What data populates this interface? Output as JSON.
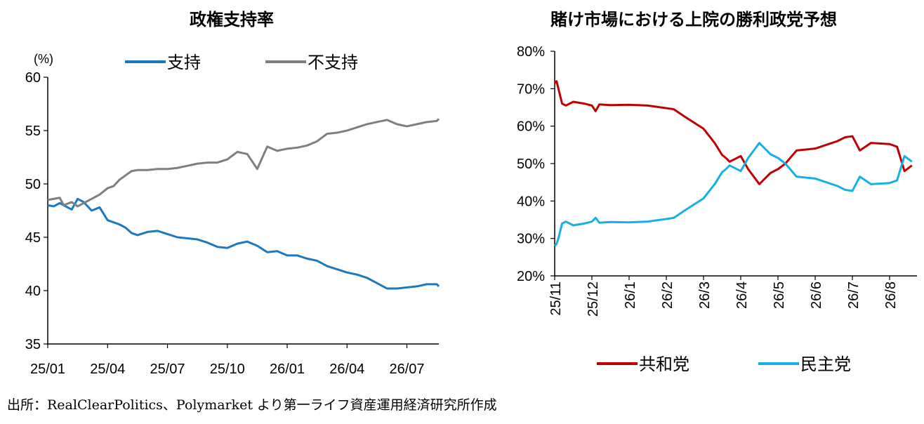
{
  "chart_data": [
    {
      "type": "line",
      "title": "政権支持率",
      "unit_label": "(%)",
      "ylim": [
        35,
        60
      ],
      "yticks": [
        35,
        40,
        45,
        50,
        55,
        60
      ],
      "x_tick_labels": [
        "25/01",
        "25/04",
        "25/07",
        "25/10",
        "26/01",
        "26/04",
        "26/07"
      ],
      "legend_placement": "top",
      "grid": false,
      "series": [
        {
          "name": "支持",
          "color": "#1a7abf",
          "x": [
            0,
            0.3,
            0.6,
            0.8,
            1.2,
            1.5,
            1.8,
            2.2,
            2.6,
            3.0,
            3.3,
            3.6,
            3.9,
            4.2,
            4.5,
            5.0,
            5.5,
            6.0,
            6.5,
            7.0,
            7.5,
            8.0,
            8.5,
            9.0,
            9.5,
            10.0,
            10.5,
            11.0,
            11.5,
            12.0,
            12.5,
            13.0,
            13.5,
            14.0,
            14.5,
            15.0,
            15.5,
            16.0,
            16.5,
            17.0,
            17.5,
            18.0,
            18.5,
            19.0,
            19.5,
            19.6
          ],
          "values": [
            48.0,
            47.9,
            48.2,
            48.0,
            47.6,
            48.6,
            48.3,
            47.5,
            47.8,
            46.6,
            46.4,
            46.2,
            45.9,
            45.4,
            45.2,
            45.5,
            45.6,
            45.3,
            45.0,
            44.9,
            44.8,
            44.5,
            44.1,
            44.0,
            44.4,
            44.6,
            44.2,
            43.6,
            43.7,
            43.3,
            43.3,
            43.0,
            42.8,
            42.3,
            42.0,
            41.7,
            41.5,
            41.2,
            40.7,
            40.2,
            40.2,
            40.3,
            40.4,
            40.6,
            40.6,
            40.4
          ]
        },
        {
          "name": "不支持",
          "color": "#7f7f7f",
          "x": [
            0,
            0.3,
            0.6,
            0.8,
            1.2,
            1.5,
            1.8,
            2.2,
            2.6,
            3.0,
            3.3,
            3.6,
            3.9,
            4.2,
            4.5,
            5.0,
            5.5,
            6.0,
            6.5,
            7.0,
            7.5,
            8.0,
            8.5,
            9.0,
            9.5,
            10.0,
            10.5,
            11.0,
            11.5,
            12.0,
            12.5,
            13.0,
            13.5,
            14.0,
            14.5,
            15.0,
            15.5,
            16.0,
            16.5,
            17.0,
            17.5,
            18.0,
            18.5,
            19.0,
            19.5,
            19.6
          ],
          "values": [
            48.5,
            48.6,
            48.7,
            48.0,
            48.3,
            47.9,
            48.2,
            48.6,
            49.0,
            49.6,
            49.8,
            50.4,
            50.8,
            51.2,
            51.3,
            51.3,
            51.4,
            51.4,
            51.5,
            51.7,
            51.9,
            52.0,
            52.0,
            52.3,
            53.0,
            52.8,
            51.4,
            53.5,
            53.1,
            53.3,
            53.4,
            53.6,
            54.0,
            54.7,
            54.8,
            55.0,
            55.3,
            55.6,
            55.8,
            56.0,
            55.6,
            55.4,
            55.6,
            55.8,
            55.9,
            56.1
          ]
        }
      ]
    },
    {
      "type": "line",
      "title": "賭け市場における上院の勝利政党予想",
      "ylim": [
        20,
        80
      ],
      "yticks": [
        "20%",
        "30%",
        "40%",
        "50%",
        "60%",
        "70%",
        "80%"
      ],
      "x_tick_labels": [
        "25/11",
        "25/12",
        "26/1",
        "26/2",
        "26/3",
        "26/4",
        "26/5",
        "26/6",
        "26/7",
        "26/8"
      ],
      "legend_placement": "bottom",
      "grid": false,
      "series": [
        {
          "name": "共和党",
          "color": "#c00000",
          "x": [
            0,
            0.05,
            0.1,
            0.2,
            0.3,
            0.5,
            0.8,
            1.0,
            1.1,
            1.2,
            1.5,
            2.0,
            2.5,
            3.0,
            3.2,
            3.5,
            4.0,
            4.3,
            4.5,
            4.6,
            4.7,
            4.8,
            5.0,
            5.2,
            5.5,
            5.6,
            5.8,
            6.0,
            6.2,
            6.5,
            7.0,
            7.3,
            7.6,
            7.8,
            8.0,
            8.2,
            8.5,
            9.0,
            9.2,
            9.4,
            9.6
          ],
          "values": [
            71.5,
            72.0,
            70.0,
            66.0,
            65.5,
            66.5,
            66.0,
            65.5,
            64.0,
            65.8,
            65.6,
            65.7,
            65.5,
            64.8,
            64.5,
            62.5,
            59.3,
            55.5,
            52.3,
            51.5,
            50.5,
            51.0,
            52.0,
            48.5,
            44.5,
            45.5,
            47.5,
            48.5,
            50.0,
            53.5,
            54.0,
            55.0,
            56.0,
            57.0,
            57.3,
            53.5,
            55.5,
            55.2,
            54.5,
            48.0,
            49.5
          ]
        },
        {
          "name": "民主党",
          "color": "#16b0e8",
          "x": [
            0,
            0.05,
            0.1,
            0.2,
            0.3,
            0.5,
            0.8,
            1.0,
            1.1,
            1.2,
            1.5,
            2.0,
            2.5,
            3.0,
            3.2,
            3.5,
            4.0,
            4.3,
            4.5,
            4.6,
            4.7,
            4.8,
            5.0,
            5.2,
            5.5,
            5.6,
            5.8,
            6.0,
            6.2,
            6.5,
            7.0,
            7.3,
            7.6,
            7.8,
            8.0,
            8.2,
            8.5,
            9.0,
            9.2,
            9.4,
            9.6
          ],
          "values": [
            28.0,
            28.5,
            30.0,
            34.0,
            34.5,
            33.5,
            34.0,
            34.5,
            35.5,
            34.2,
            34.4,
            34.3,
            34.5,
            35.2,
            35.5,
            37.5,
            40.7,
            44.5,
            47.7,
            48.5,
            49.5,
            49.0,
            48.0,
            51.5,
            55.5,
            54.5,
            52.5,
            51.5,
            50.0,
            46.5,
            46.0,
            45.0,
            44.0,
            43.0,
            42.7,
            46.5,
            44.5,
            44.8,
            45.5,
            52.0,
            50.5
          ]
        }
      ]
    }
  ],
  "footer": {
    "source": "出所：RealClearPolitics、Polymarket より第一ライフ資産運用経済研究所作成"
  }
}
